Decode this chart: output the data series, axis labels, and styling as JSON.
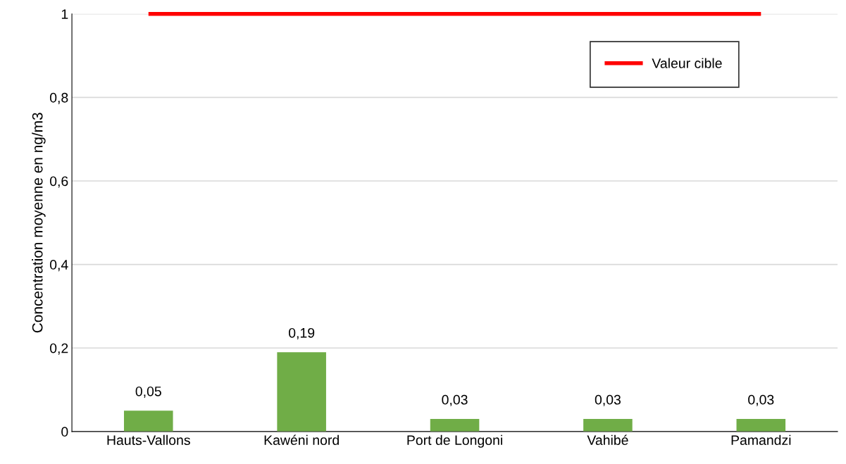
{
  "chart_data": {
    "type": "bar",
    "ylabel": "Concentration moyenne en ng/m3",
    "categories": [
      "Hauts-Vallons",
      "Kawéni nord",
      "Port de Longoni",
      "Vahibé",
      "Pamandzi"
    ],
    "values": [
      0.05,
      0.19,
      0.03,
      0.03,
      0.03
    ],
    "value_labels": [
      "0,05",
      "0,19",
      "0,03",
      "0,03",
      "0,03"
    ],
    "color": "#70ad47",
    "ylim": [
      0,
      1
    ],
    "yticks": [
      0,
      {
        "value": 0.2,
        "label": "0,2"
      },
      {
        "value": 0.4,
        "label": "0,4"
      },
      {
        "value": 0.6,
        "label": "0,6"
      },
      {
        "value": 0.8,
        "label": "0,8"
      },
      1
    ],
    "ref_lines": [
      {
        "axis": "y",
        "value": 1,
        "label": "Valeur cible",
        "color": "#ff0000",
        "line_style": "solid"
      }
    ],
    "grid": "y",
    "legend": "top right"
  }
}
